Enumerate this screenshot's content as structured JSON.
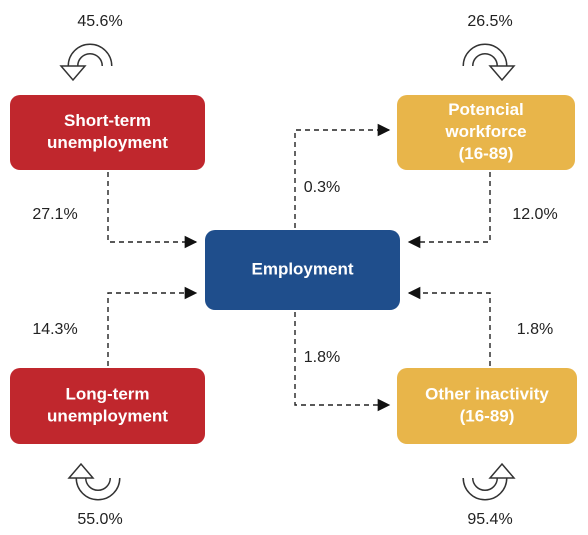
{
  "nodes": [
    {
      "label": [
        "Short-term",
        "unemployment"
      ]
    },
    {
      "label": [
        "Potencial",
        "workforce",
        "(16-89)"
      ]
    },
    {
      "label": [
        "Employment"
      ]
    },
    {
      "label": [
        "Long-term",
        "unemployment"
      ]
    },
    {
      "label": [
        "Other inactivity",
        "(16-89)"
      ]
    }
  ],
  "flows": [
    {
      "label": "45.6%"
    },
    {
      "label": "26.5%"
    },
    {
      "label": "27.1%"
    },
    {
      "label": "0.3%"
    },
    {
      "label": "12.0%"
    },
    {
      "label": "14.3%"
    },
    {
      "label": "1.8%"
    },
    {
      "label": "1.8%"
    },
    {
      "label": "55.0%"
    },
    {
      "label": "95.4%"
    }
  ]
}
